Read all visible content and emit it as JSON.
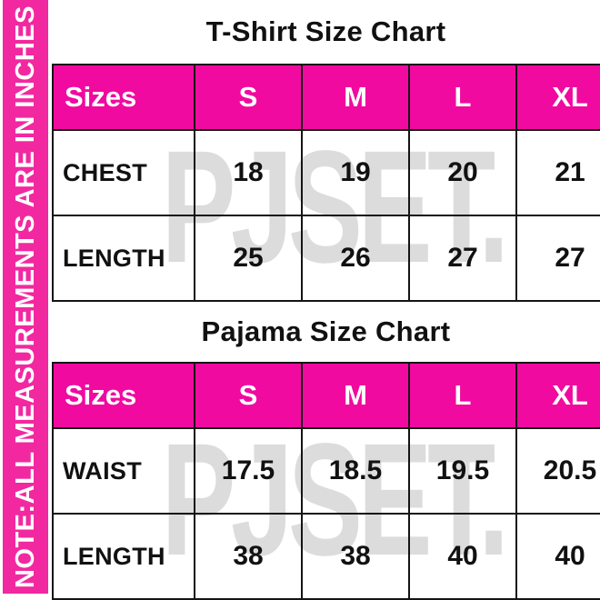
{
  "sidebar": {
    "note": "NOTE:ALL MEASUREMENTS ARE IN INCHES"
  },
  "watermark": {
    "text": "PJSET."
  },
  "colors": {
    "header_pink": "#F00AA0",
    "sidebar_pink": "#F228A0",
    "watermark_gray": "#DCDCDC",
    "border_black": "#141414",
    "text_black": "#111111",
    "text_white": "#FFFFFF"
  },
  "chart_data": [
    {
      "type": "table",
      "title": "T-Shirt Size Chart",
      "columns": [
        "Sizes",
        "S",
        "M",
        "L",
        "XL"
      ],
      "rows": [
        [
          "CHEST",
          "18",
          "19",
          "20",
          "21"
        ],
        [
          "LENGTH",
          "25",
          "26",
          "27",
          "27"
        ]
      ]
    },
    {
      "type": "table",
      "title": "Pajama Size Chart",
      "columns": [
        "Sizes",
        "S",
        "M",
        "L",
        "XL"
      ],
      "rows": [
        [
          "WAIST",
          "17.5",
          "18.5",
          "19.5",
          "20.5"
        ],
        [
          "LENGTH",
          "38",
          "38",
          "40",
          "40"
        ]
      ]
    }
  ]
}
